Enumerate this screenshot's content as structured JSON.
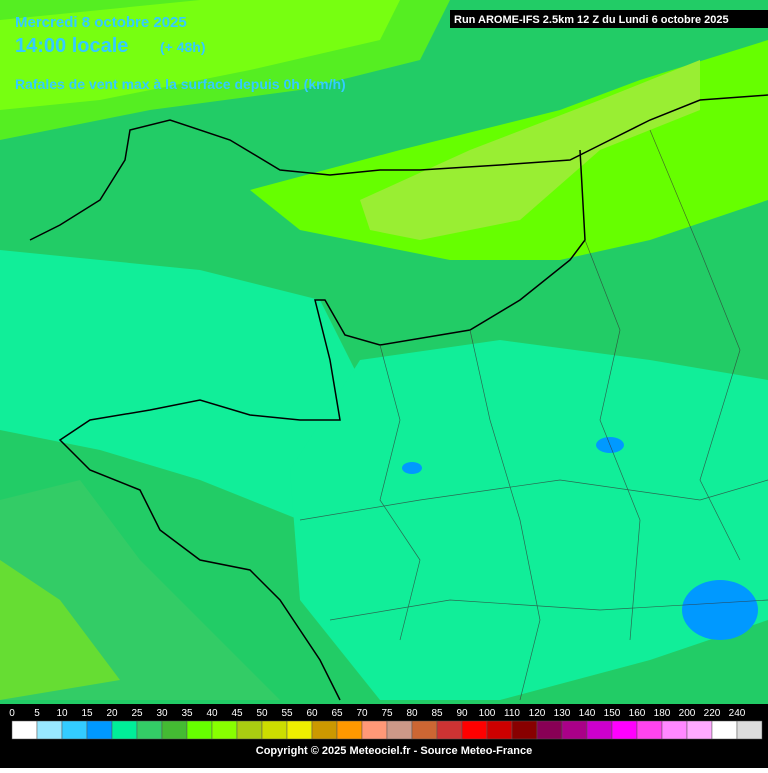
{
  "header": {
    "date": "Mercredi 8 octobre 2025",
    "time": "14:00 locale",
    "lead": "(+ 48h)",
    "parameter": "Rafales de vent max à la surface depuis 0h (km/h)",
    "run": "Run AROME-IFS 2.5km 12 Z du Lundi 6 octobre 2025"
  },
  "legend": {
    "ticks": [
      0,
      5,
      10,
      15,
      20,
      25,
      30,
      35,
      40,
      45,
      50,
      55,
      60,
      65,
      70,
      75,
      80,
      85,
      90,
      100,
      110,
      120,
      130,
      140,
      150,
      160,
      180,
      200,
      220,
      240
    ],
    "colors": [
      "#ffffff",
      "#99e8ff",
      "#33ccff",
      "#0099ff",
      "#00ee99",
      "#33cc66",
      "#44bb33",
      "#66ff00",
      "#88ff00",
      "#aacc11",
      "#ccdd00",
      "#eeee00",
      "#cc9900",
      "#ff9900",
      "#ff9977",
      "#cc9988",
      "#cc6633",
      "#cc3333",
      "#ff0000",
      "#cc0000",
      "#880000",
      "#880055",
      "#aa0088",
      "#cc00cc",
      "#ff00ff",
      "#ff44ee",
      "#ff88ff",
      "#ffaaff",
      "#ffffff",
      "#dddddd"
    ]
  },
  "footer": {
    "copyright": "Copyright © 2025 Meteociel.fr - Source Meteo-France"
  }
}
